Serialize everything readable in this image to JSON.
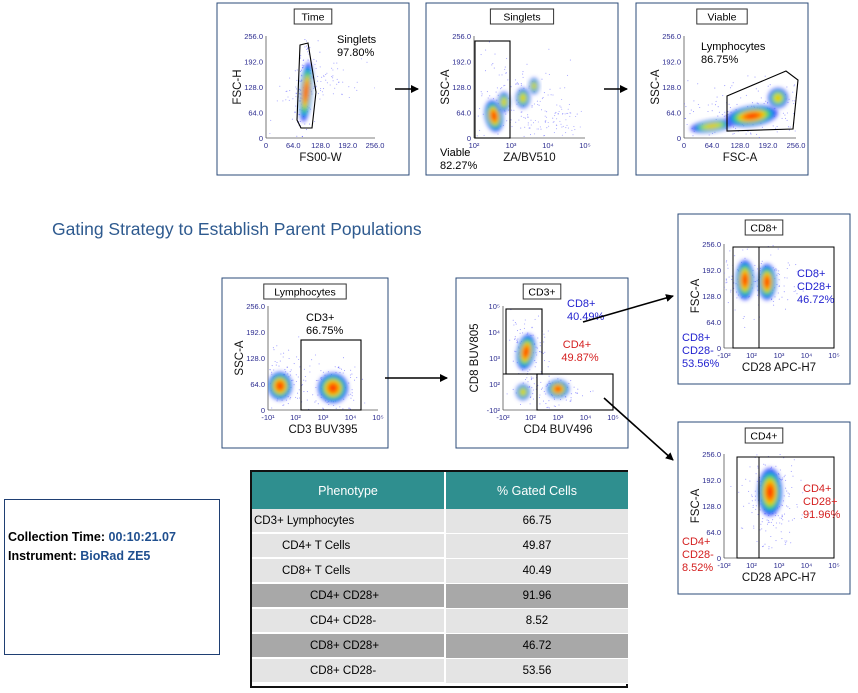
{
  "heading": "Gating Strategy to Establish Parent Populations",
  "info": {
    "collection_label": "Collection Time:",
    "collection_value": "00:10:21.07",
    "instrument_label": "Instrument:",
    "instrument_value": "BioRad ZE5"
  },
  "table": {
    "headers": [
      "Phenotype",
      "% Gated Cells"
    ],
    "rows": [
      {
        "phenotype": "CD3+ Lymphocytes",
        "value": "66.75",
        "indent": 0
      },
      {
        "phenotype": "CD4+ T Cells",
        "value": "49.87",
        "indent": 1
      },
      {
        "phenotype": "CD8+ T Cells",
        "value": "40.49",
        "indent": 1
      },
      {
        "phenotype": "CD4+ CD28+",
        "value": "91.96",
        "indent": 2
      },
      {
        "phenotype": "CD4+ CD28-",
        "value": "8.52",
        "indent": 2
      },
      {
        "phenotype": "CD8+ CD28+",
        "value": "46.72",
        "indent": 2
      },
      {
        "phenotype": "CD8+ CD28-",
        "value": "53.56",
        "indent": 2
      }
    ]
  },
  "colors": {
    "heading": "#2e5a8f",
    "table_header": "#2f8f8f",
    "row_light": "#e4e4e4",
    "row_dark": "#a8a8a8",
    "cd8_text": "#1f1fcf",
    "cd4_text": "#d41f1f",
    "axis_text": "#2b2b8f"
  },
  "chart_data": [
    {
      "id": "time",
      "type": "scatter",
      "title": "Time",
      "xlabel": "FS00-W",
      "ylabel": "FSC-H",
      "xscale": "linear",
      "yscale": "linear",
      "xticks": [
        "0",
        "64.0",
        "128.0",
        "192.0",
        "256.0"
      ],
      "yticks": [
        "0",
        "64.0",
        "128.0",
        "192.0",
        "256.0"
      ],
      "gates": [
        {
          "name": "Singlets",
          "percent": "97.80%",
          "color": "#000000"
        }
      ]
    },
    {
      "id": "singlets",
      "type": "scatter",
      "title": "Singlets",
      "xlabel": "ZA/BV510",
      "ylabel": "SSC-A",
      "xscale": "log",
      "yscale": "linear",
      "xticks": [
        "10²",
        "10³",
        "10⁴",
        "10⁵"
      ],
      "yticks": [
        "0",
        "64.0",
        "128.0",
        "192.0",
        "256.0"
      ],
      "gates": [
        {
          "name": "Viable",
          "percent": "82.27%",
          "color": "#000000"
        }
      ]
    },
    {
      "id": "viable",
      "type": "scatter",
      "title": "Viable",
      "xlabel": "FSC-A",
      "ylabel": "SSC-A",
      "xscale": "linear",
      "yscale": "linear",
      "xticks": [
        "0",
        "64.0",
        "128.0",
        "192.0",
        "256.0"
      ],
      "yticks": [
        "0",
        "64.0",
        "128.0",
        "192.0",
        "256.0"
      ],
      "gates": [
        {
          "name": "Lymphocytes",
          "percent": "86.75%",
          "color": "#000000"
        }
      ]
    },
    {
      "id": "lymphocytes",
      "type": "scatter",
      "title": "Lymphocytes",
      "xlabel": "CD3 BUV395",
      "ylabel": "SSC-A",
      "xscale": "log",
      "yscale": "linear",
      "xticks": [
        "-10¹",
        "10²",
        "10³",
        "10⁴",
        "10⁵"
      ],
      "yticks": [
        "0",
        "64.0",
        "128.0",
        "192.0",
        "256.0"
      ],
      "gates": [
        {
          "name": "CD3+",
          "percent": "66.75%",
          "color": "#000000"
        }
      ]
    },
    {
      "id": "cd3",
      "type": "scatter",
      "title": "CD3+",
      "xlabel": "CD4 BUV496",
      "ylabel": "CD8 BUV805",
      "xscale": "log",
      "yscale": "log",
      "xticks": [
        "-10²",
        "10²",
        "10³",
        "10⁴",
        "10⁵"
      ],
      "yticks": [
        "-10²",
        "10²",
        "10³",
        "10⁴",
        "10⁵"
      ],
      "gates": [
        {
          "name": "CD8+",
          "percent": "40.49%",
          "color": "#1f1fcf"
        },
        {
          "name": "CD4+",
          "percent": "49.87%",
          "color": "#d41f1f"
        }
      ]
    },
    {
      "id": "cd8",
      "type": "scatter",
      "title": "CD8+",
      "xlabel": "CD28 APC-H7",
      "ylabel": "FSC-A",
      "xscale": "log",
      "yscale": "linear",
      "xticks": [
        "-10²",
        "10²",
        "10³",
        "10⁴",
        "10⁵"
      ],
      "yticks": [
        "0",
        "64.0",
        "128.0",
        "192.0",
        "256.0"
      ],
      "gates": [
        {
          "name": "CD8+\nCD28+",
          "percent": "46.72%",
          "color": "#1f1fcf"
        },
        {
          "name": "CD8+\nCD28-",
          "percent": "53.56%",
          "color": "#1f1fcf"
        }
      ]
    },
    {
      "id": "cd4",
      "type": "scatter",
      "title": "CD4+",
      "xlabel": "CD28 APC-H7",
      "ylabel": "FSC-A",
      "xscale": "log",
      "yscale": "linear",
      "xticks": [
        "-10²",
        "10²",
        "10³",
        "10⁴",
        "10⁵"
      ],
      "yticks": [
        "0",
        "64.0",
        "128.0",
        "192.0",
        "256.0"
      ],
      "gates": [
        {
          "name": "CD4+\nCD28+",
          "percent": "91.96%",
          "color": "#d41f1f"
        },
        {
          "name": "CD4+\nCD28-",
          "percent": "8.52%",
          "color": "#d41f1f"
        }
      ]
    }
  ]
}
